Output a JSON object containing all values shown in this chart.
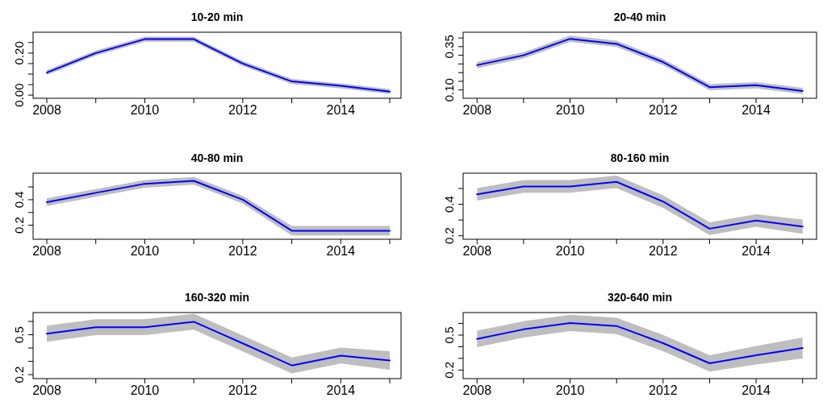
{
  "chart_data": [
    {
      "type": "line",
      "title": "10-20 min",
      "x": [
        2008,
        2009,
        2010,
        2011,
        2012,
        2013,
        2014,
        2015
      ],
      "xlim": [
        2007.72,
        2015.23
      ],
      "xticks": [
        2008,
        {
          "value": 2009,
          "label": null
        },
        2010,
        {
          "value": 2011,
          "label": null
        },
        2012,
        {
          "value": 2013,
          "label": null
        },
        2014,
        {
          "value": 2015,
          "label": null
        }
      ],
      "ylim": [
        -0.015,
        0.299
      ],
      "yticks": [
        {
          "value": 0,
          "label": "0.00"
        },
        {
          "value": 0.05,
          "label": null
        },
        {
          "value": 0.1,
          "label": null
        },
        {
          "value": 0.15,
          "label": null
        },
        {
          "value": 0.2,
          "label": "0.20"
        },
        {
          "value": 0.25,
          "label": null
        }
      ],
      "series": [
        {
          "color": "#0000ff",
          "values": [
            0.107,
            0.2,
            0.266,
            0.266,
            0.15,
            0.065,
            0.044,
            0.017
          ],
          "lower": [
            0.095,
            0.188,
            0.254,
            0.254,
            0.138,
            0.053,
            0.032,
            0.005
          ],
          "upper": [
            0.119,
            0.212,
            0.278,
            0.278,
            0.162,
            0.077,
            0.056,
            0.029
          ]
        }
      ]
    },
    {
      "type": "line",
      "title": "20-40 min",
      "x": [
        2008,
        2009,
        2010,
        2011,
        2012,
        2013,
        2014,
        2015
      ],
      "xlim": [
        2007.7,
        2015.3
      ],
      "xticks": [
        2008,
        {
          "value": 2009,
          "label": null
        },
        2010,
        {
          "value": 2011,
          "label": null
        },
        2012,
        {
          "value": 2013,
          "label": null
        },
        2014,
        {
          "value": 2015,
          "label": null
        }
      ],
      "ylim": [
        0.052,
        0.433
      ],
      "yticks": [
        {
          "value": 0.1,
          "label": "0.10"
        },
        {
          "value": 0.15,
          "label": null
        },
        {
          "value": 0.2,
          "label": null
        },
        {
          "value": 0.25,
          "label": null
        },
        {
          "value": 0.3,
          "label": null
        },
        {
          "value": 0.35,
          "label": "0.35"
        },
        {
          "value": 0.4,
          "label": null
        }
      ],
      "series": [
        {
          "color": "#0000ff",
          "values": [
            0.243,
            0.3,
            0.395,
            0.366,
            0.261,
            0.116,
            0.127,
            0.094
          ],
          "lower": [
            0.225,
            0.282,
            0.377,
            0.348,
            0.243,
            0.098,
            0.109,
            0.076
          ],
          "upper": [
            0.261,
            0.318,
            0.413,
            0.384,
            0.279,
            0.134,
            0.145,
            0.112
          ]
        }
      ]
    },
    {
      "type": "line",
      "title": "40-80 min",
      "x": [
        2008,
        2009,
        2010,
        2011,
        2012,
        2013,
        2014,
        2015
      ],
      "xlim": [
        2007.72,
        2015.23
      ],
      "xticks": [
        2008,
        {
          "value": 2009,
          "label": null
        },
        2010,
        {
          "value": 2011,
          "label": null
        },
        2012,
        {
          "value": 2013,
          "label": null
        },
        2014,
        {
          "value": 2015,
          "label": null
        }
      ],
      "ylim": [
        0.09,
        0.608
      ],
      "yticks": [
        0.2,
        {
          "value": 0.3,
          "label": null
        },
        0.4,
        {
          "value": 0.5,
          "label": null
        }
      ],
      "series": [
        {
          "color": "#0000ff",
          "values": [
            0.38,
            0.454,
            0.525,
            0.548,
            0.4,
            0.157,
            0.157,
            0.157
          ],
          "lower": [
            0.35,
            0.424,
            0.495,
            0.518,
            0.37,
            0.12,
            0.12,
            0.12
          ],
          "upper": [
            0.41,
            0.484,
            0.555,
            0.578,
            0.43,
            0.194,
            0.194,
            0.194
          ]
        }
      ]
    },
    {
      "type": "line",
      "title": "80-160 min",
      "x": [
        2008,
        2009,
        2010,
        2011,
        2012,
        2013,
        2014,
        2015
      ],
      "xlim": [
        2007.7,
        2015.3
      ],
      "xticks": [
        2008,
        {
          "value": 2009,
          "label": null
        },
        2010,
        {
          "value": 2011,
          "label": null
        },
        2012,
        {
          "value": 2013,
          "label": null
        },
        2014,
        {
          "value": 2015,
          "label": null
        }
      ],
      "ylim": [
        0.178,
        0.597
      ],
      "yticks": [
        0.2,
        {
          "value": 0.3,
          "label": null
        },
        0.4,
        {
          "value": 0.5,
          "label": null
        }
      ],
      "series": [
        {
          "color": "#0000ff",
          "values": [
            0.463,
            0.513,
            0.513,
            0.542,
            0.417,
            0.245,
            0.297,
            0.258
          ],
          "lower": [
            0.423,
            0.473,
            0.473,
            0.502,
            0.377,
            0.205,
            0.257,
            0.213
          ],
          "upper": [
            0.503,
            0.553,
            0.553,
            0.582,
            0.457,
            0.285,
            0.337,
            0.303
          ]
        }
      ]
    },
    {
      "type": "line",
      "title": "160-320 min",
      "x": [
        2008,
        2009,
        2010,
        2011,
        2012,
        2013,
        2014,
        2015
      ],
      "xlim": [
        2007.72,
        2015.23
      ],
      "xticks": [
        2008,
        {
          "value": 2009,
          "label": null
        },
        2010,
        {
          "value": 2011,
          "label": null
        },
        2012,
        {
          "value": 2013,
          "label": null
        },
        2014,
        {
          "value": 2015,
          "label": null
        }
      ],
      "ylim": [
        0.17,
        0.667
      ],
      "yticks": [
        0.2,
        {
          "value": 0.3,
          "label": null
        },
        {
          "value": 0.4,
          "label": null
        },
        0.5,
        {
          "value": 0.6,
          "label": null
        }
      ],
      "series": [
        {
          "color": "#0000ff",
          "values": [
            0.508,
            0.557,
            0.557,
            0.598,
            0.435,
            0.269,
            0.343,
            0.306
          ],
          "lower": [
            0.448,
            0.497,
            0.497,
            0.538,
            0.375,
            0.209,
            0.283,
            0.236
          ],
          "upper": [
            0.568,
            0.617,
            0.617,
            0.658,
            0.495,
            0.329,
            0.403,
            0.376
          ]
        }
      ]
    },
    {
      "type": "line",
      "title": "320-640 min",
      "x": [
        2008,
        2009,
        2010,
        2011,
        2012,
        2013,
        2014,
        2015
      ],
      "xlim": [
        2007.7,
        2015.3
      ],
      "xticks": [
        2008,
        {
          "value": 2009,
          "label": null
        },
        2010,
        {
          "value": 2011,
          "label": null
        },
        2012,
        {
          "value": 2013,
          "label": null
        },
        2014,
        {
          "value": 2015,
          "label": null
        }
      ],
      "ylim": [
        0.127,
        0.693
      ],
      "yticks": [
        0.2,
        {
          "value": 0.3,
          "label": null
        },
        {
          "value": 0.4,
          "label": null
        },
        0.5,
        {
          "value": 0.6,
          "label": null
        }
      ],
      "series": [
        {
          "color": "#0000ff",
          "values": [
            0.467,
            0.549,
            0.604,
            0.578,
            0.431,
            0.258,
            0.327,
            0.389
          ],
          "lower": [
            0.397,
            0.479,
            0.534,
            0.508,
            0.361,
            0.188,
            0.247,
            0.299
          ],
          "upper": [
            0.537,
            0.619,
            0.674,
            0.648,
            0.501,
            0.328,
            0.407,
            0.479
          ]
        }
      ]
    }
  ]
}
